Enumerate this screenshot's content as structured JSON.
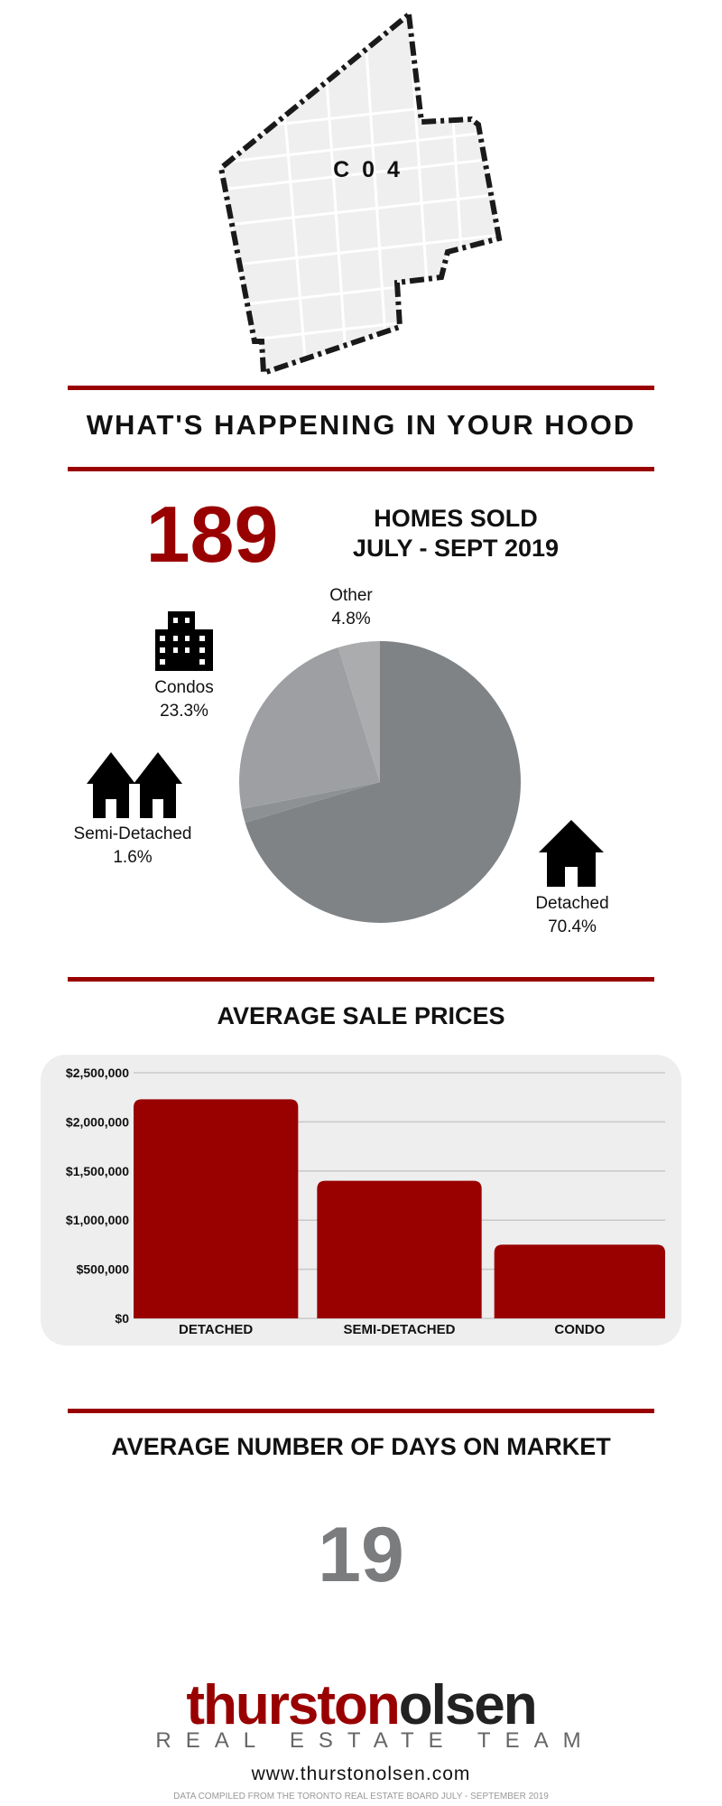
{
  "map": {
    "district_code": "C04"
  },
  "hood": {
    "title": "WHAT'S HAPPENING IN YOUR HOOD"
  },
  "homes_sold": {
    "number": "189",
    "line1": "HOMES SOLD",
    "line2": "JULY - SEPT 2019"
  },
  "pie_labels": {
    "other": {
      "name": "Other",
      "pct": "4.8%"
    },
    "condos": {
      "name": "Condos",
      "pct": "23.3%"
    },
    "semi": {
      "name": "Semi-Detached",
      "pct": "1.6%"
    },
    "detached": {
      "name": "Detached",
      "pct": "70.4%"
    }
  },
  "prices": {
    "title": "AVERAGE SALE PRICES"
  },
  "days": {
    "title": "AVERAGE NUMBER OF DAYS ON MARKET",
    "value": "19"
  },
  "brand": {
    "name_part1": "thurston",
    "name_part2": "olsen",
    "tagline": "REAL ESTATE TEAM",
    "website": "www.thurstonolsen.com",
    "footnote": "DATA COMPILED FROM THE TORONTO REAL ESTATE BOARD JULY - SEPTEMBER 2019"
  },
  "colors": {
    "accent": "#990000",
    "pie_detached": "#7f8386",
    "pie_semi": "#8e9194",
    "pie_condos": "#9d9fa2",
    "pie_other": "#abacae",
    "days_number": "#7a7c7e"
  },
  "icons": {
    "condos": "building-icon",
    "semi": "two-houses-icon",
    "detached": "house-icon"
  },
  "chart_data": [
    {
      "type": "pie",
      "categories": [
        "Detached",
        "Semi-Detached",
        "Condos",
        "Other"
      ],
      "values": [
        70.4,
        1.6,
        23.3,
        4.8
      ],
      "title": "",
      "unit": "%"
    },
    {
      "type": "bar",
      "categories": [
        "DETACHED",
        "SEMI-DETACHED",
        "CONDO"
      ],
      "values": [
        2230000,
        1400000,
        750000
      ],
      "title": "AVERAGE SALE PRICES",
      "xlabel": "",
      "ylabel": "",
      "ylim": [
        0,
        2500000
      ],
      "yticks": [
        "$0",
        "$500,000",
        "$1,000,000",
        "$1,500,000",
        "$2,000,000",
        "$2,500,000"
      ],
      "grid": true
    }
  ]
}
